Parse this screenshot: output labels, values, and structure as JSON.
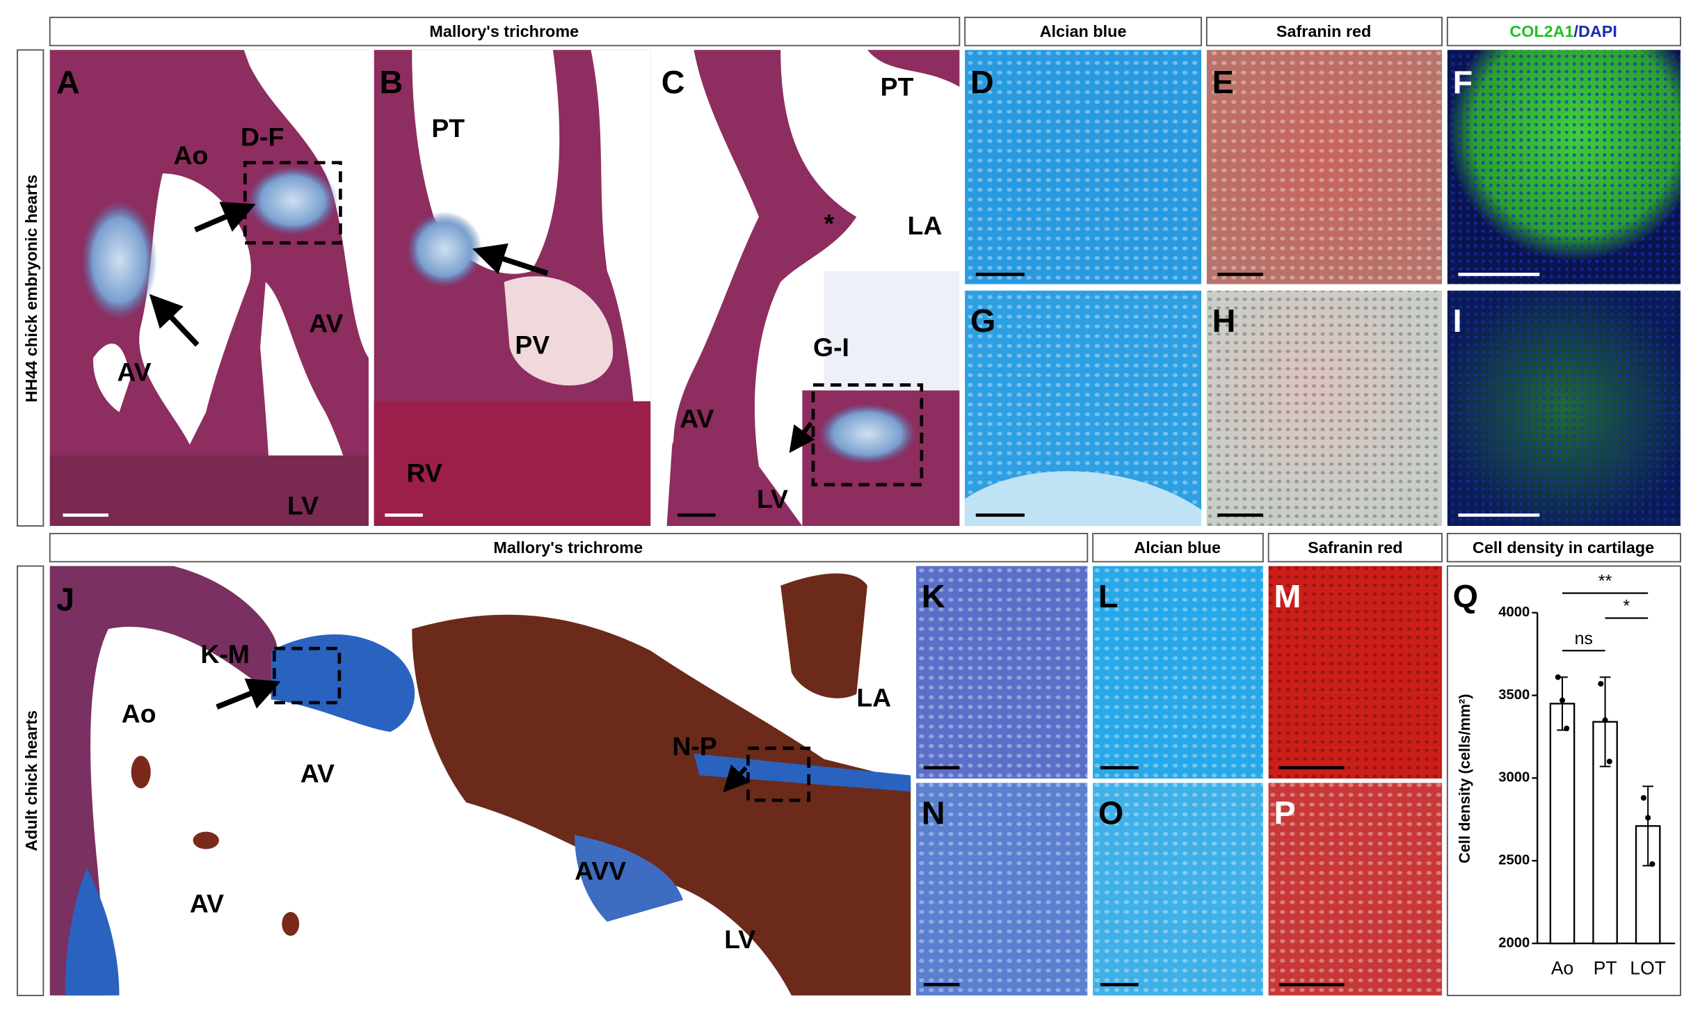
{
  "figure": {
    "top_headers": [
      "Mallory's trichrome",
      "Alcian blue",
      "Safranin red"
    ],
    "col2a1": "COL2A1",
    "dapi": "/DAPI",
    "bottom_headers": [
      "Mallory's trichrome",
      "Alcian blue",
      "Safranin red",
      "Cell density in cartilage"
    ],
    "row_labels": [
      "HH44 chick embryonic hearts",
      "Adult chick hearts"
    ],
    "panels": [
      {
        "letter": "A",
        "labels": [
          "Ao",
          "D-F",
          "AV",
          "AV",
          "LV"
        ]
      },
      {
        "letter": "B",
        "labels": [
          "PT",
          "PV",
          "RV"
        ]
      },
      {
        "letter": "C",
        "labels": [
          "PT",
          "LA",
          "*",
          "G-I",
          "AV",
          "LV"
        ]
      },
      {
        "letter": "D"
      },
      {
        "letter": "E"
      },
      {
        "letter": "F"
      },
      {
        "letter": "G"
      },
      {
        "letter": "H"
      },
      {
        "letter": "I"
      },
      {
        "letter": "J",
        "labels": [
          "K-M",
          "Ao",
          "AV",
          "AV",
          "N-P",
          "LA",
          "AVV",
          "LV"
        ]
      },
      {
        "letter": "K"
      },
      {
        "letter": "L"
      },
      {
        "letter": "M"
      },
      {
        "letter": "N"
      },
      {
        "letter": "O"
      },
      {
        "letter": "P"
      },
      {
        "letter": "Q"
      }
    ]
  },
  "chart_data": {
    "type": "bar",
    "y_label": "Cell density (cells/mm²)",
    "categories": [
      "Ao",
      "PT",
      "LOT"
    ],
    "values": [
      3450,
      3340,
      2710
    ],
    "errors": [
      160,
      270,
      240
    ],
    "points": [
      [
        3610,
        3470,
        3300
      ],
      [
        3570,
        3350,
        3100
      ],
      [
        2880,
        2760,
        2480
      ]
    ],
    "color": "#ffffff",
    "edge_color": "#000000",
    "ylim": [
      2000,
      4000
    ],
    "yticks": [
      2000,
      2500,
      3000,
      3500,
      4000
    ],
    "comparisons": [
      {
        "groups": [
          "Ao",
          "PT"
        ],
        "label": "ns"
      },
      {
        "groups": [
          "Ao",
          "LOT"
        ],
        "label": "**"
      },
      {
        "groups": [
          "PT",
          "LOT"
        ],
        "label": "*"
      }
    ]
  }
}
